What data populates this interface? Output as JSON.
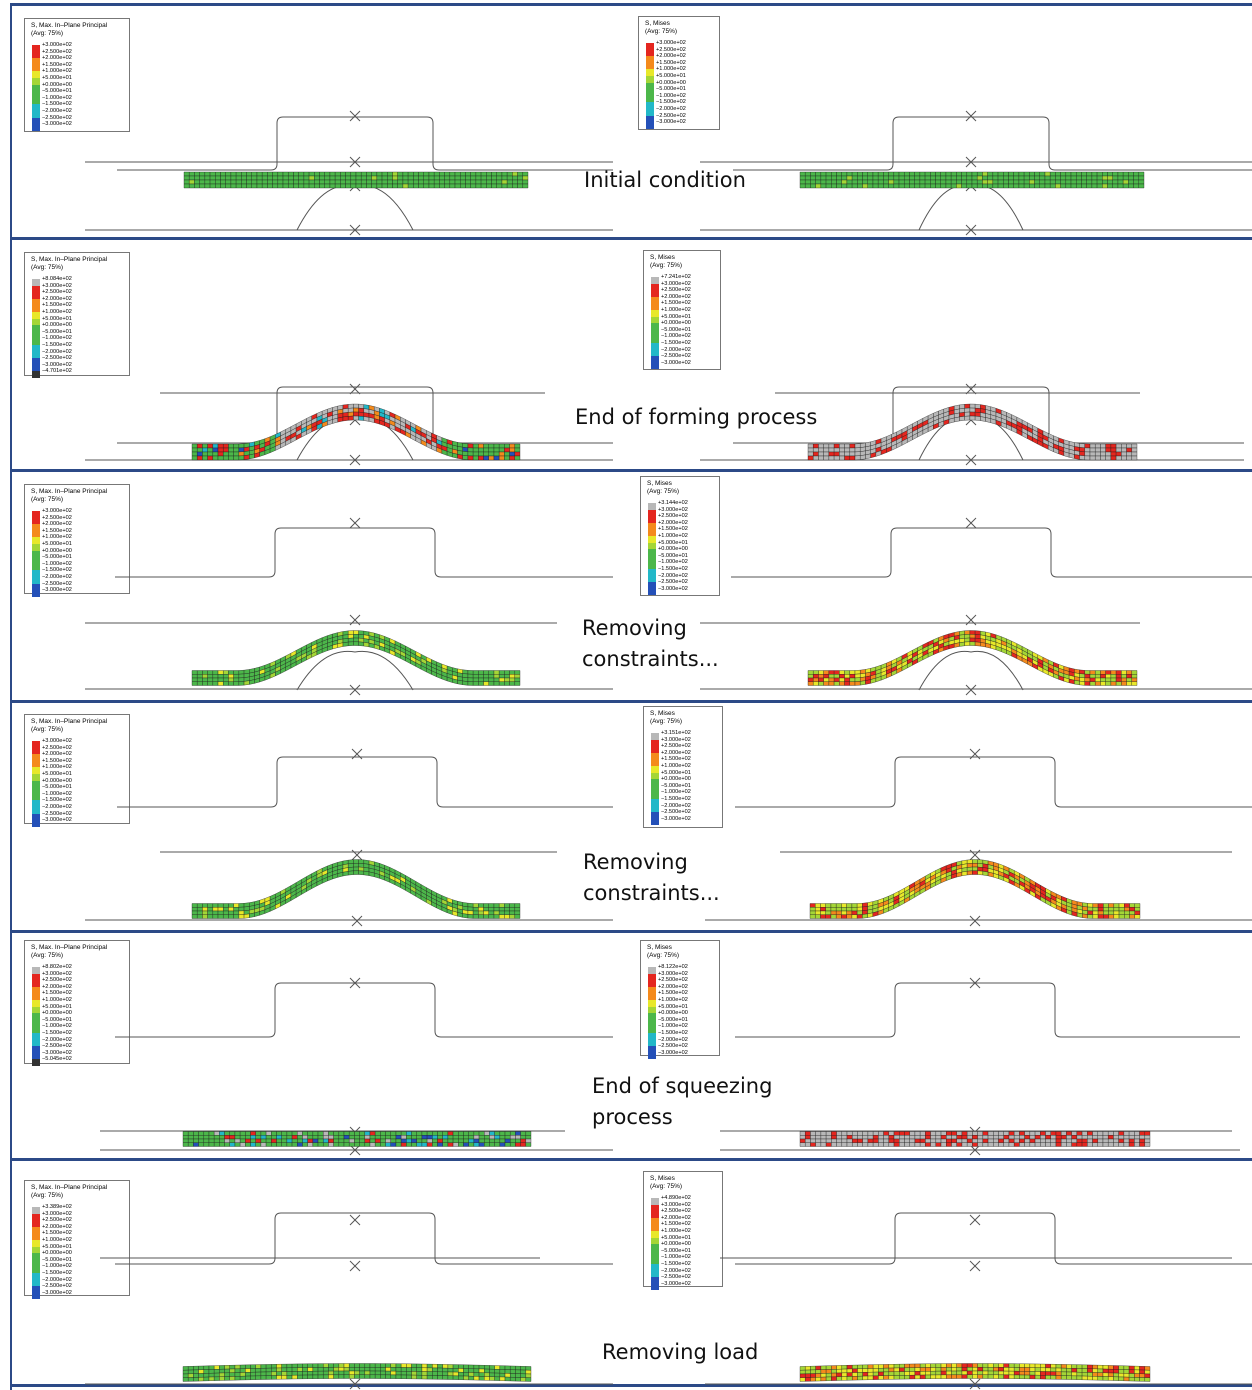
{
  "palette": {
    "frame": "#2c4a87",
    "grey": "#b8b8b8",
    "darkgrey": "#333333",
    "red": "#e4261f",
    "orange": "#f48a1c",
    "yellow": "#e8e82a",
    "lime": "#a4d636",
    "green": "#4cb74a",
    "cyan": "#22b8c8",
    "blue": "#2450b8"
  },
  "legend_header": {
    "principal": [
      "S, Max. In–Plane Principal",
      "(Avg: 75%)"
    ],
    "mises": [
      "S, Mises",
      "(Avg: 75%)"
    ]
  },
  "scale_base": [
    "+3.000e+02",
    "+2.500e+02",
    "+2.000e+02",
    "+1.500e+02",
    "+1.000e+02",
    "+5.000e+01",
    "+0.000e+00",
    "−5.000e+01",
    "−1.000e+02",
    "−1.500e+02",
    "−2.000e+02",
    "−2.500e+02",
    "−3.000e+02"
  ],
  "stages": [
    {
      "label": "Initial condition",
      "label_lines": [
        "Initial condition"
      ],
      "principal": {
        "max": null,
        "min": null,
        "fill": "green",
        "spots": "none"
      },
      "mises": {
        "max": null,
        "fill": "green",
        "spots": "none"
      }
    },
    {
      "label": "End of forming process",
      "label_lines": [
        "End of forming process"
      ],
      "principal": {
        "max": "+8.084e+02",
        "min": "−4.701e+02",
        "fill": "grey-green",
        "spots": "mixed"
      },
      "mises": {
        "max": "+7.241e+02",
        "fill": "grey",
        "spots": "red"
      }
    },
    {
      "label": "Removing constraints...",
      "label_lines": [
        "Removing",
        "constraints..."
      ],
      "principal": {
        "max": null,
        "min": null,
        "fill": "green",
        "spots": "light"
      },
      "mises": {
        "max": "+3.144e+02",
        "fill": "lime",
        "spots": "red"
      }
    },
    {
      "label": "Removing constraints...",
      "label_lines": [
        "Removing",
        "constraints..."
      ],
      "principal": {
        "max": null,
        "min": null,
        "fill": "green",
        "spots": "light"
      },
      "mises": {
        "max": "+3.151e+02",
        "fill": "lime",
        "spots": "red"
      }
    },
    {
      "label": "End of squeezing process",
      "label_lines": [
        "End of squeezing",
        "process"
      ],
      "principal": {
        "max": "+8.802e+02",
        "min": "−5.045e+02",
        "fill": "green",
        "spots": "mixed"
      },
      "mises": {
        "max": "+8.122e+02",
        "fill": "grey",
        "spots": "red"
      }
    },
    {
      "label": "Removing load",
      "label_lines": [
        "Removing load"
      ],
      "principal": {
        "max": "+3.389e+02",
        "min": null,
        "fill": "green",
        "spots": "light"
      },
      "mises": {
        "max": "+4.890e+02",
        "fill": "lime",
        "spots": "red"
      }
    }
  ]
}
